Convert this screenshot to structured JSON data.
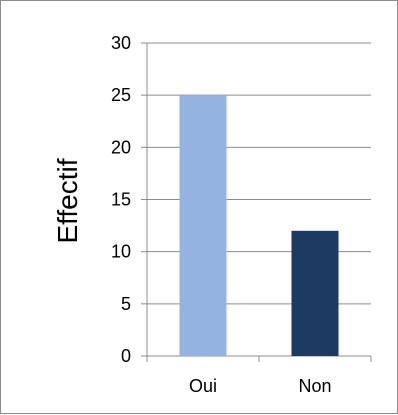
{
  "chart_data": {
    "type": "bar",
    "categories": [
      "Oui",
      "Non"
    ],
    "values": [
      25,
      12
    ],
    "title": "",
    "xlabel": "",
    "ylabel": "Effectif",
    "ylim": [
      0,
      30
    ],
    "yticks": [
      0,
      5,
      10,
      15,
      20,
      25,
      30
    ],
    "grid": true,
    "legend": "none",
    "colors": [
      "#95b3e0",
      "#1d3a63"
    ]
  }
}
